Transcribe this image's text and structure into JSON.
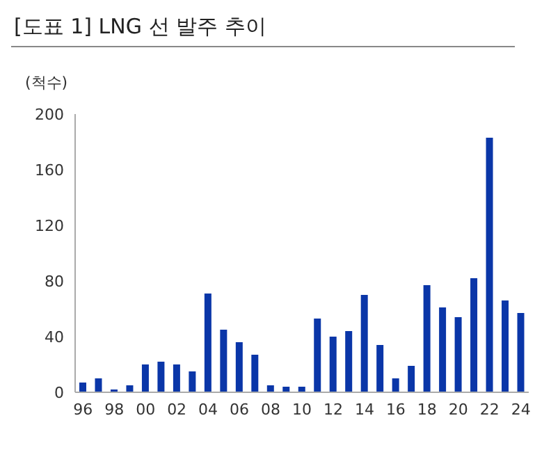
{
  "chart_data": {
    "type": "bar",
    "title": "[도표 1] LNG 선 발주 추이",
    "ylabel": "(척수)",
    "categories": [
      "96",
      null,
      "98",
      null,
      "00",
      null,
      "02",
      null,
      "04",
      null,
      "06",
      null,
      "08",
      null,
      "10",
      null,
      "12",
      null,
      "14",
      null,
      "16",
      null,
      "18",
      null,
      "20",
      null,
      "22",
      null,
      "24"
    ],
    "values": [
      7,
      10,
      2,
      5,
      20,
      22,
      20,
      15,
      71,
      45,
      36,
      27,
      5,
      4,
      4,
      53,
      40,
      44,
      70,
      34,
      10,
      19,
      77,
      61,
      54,
      82,
      183,
      66,
      57
    ],
    "color": "#0a36a8",
    "ylim": [
      0,
      200
    ],
    "yticks": [
      0,
      40,
      80,
      120,
      160,
      200
    ],
    "grid": false,
    "legend": false
  }
}
